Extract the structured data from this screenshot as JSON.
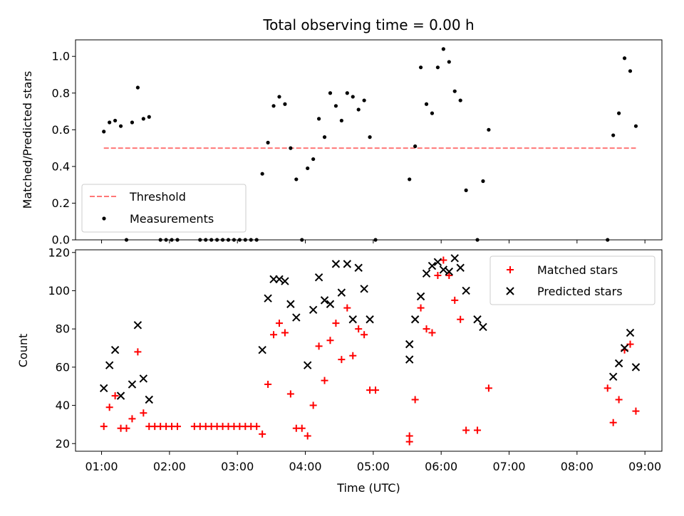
{
  "title": "Total observing time = 0.00 h",
  "colors": {
    "threshold": "#ff7777",
    "measurement": "#000000",
    "matched": "#ff0000",
    "predicted": "#000000"
  },
  "chart_data": [
    {
      "type": "scatter",
      "ylabel": "Matched/Predicted stars",
      "ylim": [
        0,
        1.09
      ],
      "yticks": [
        0.0,
        0.2,
        0.4,
        0.6,
        0.8,
        1.0
      ],
      "ytick_labels": [
        "0.0",
        "0.2",
        "0.4",
        "0.6",
        "0.8",
        "1.0"
      ],
      "xlim": [
        "00:37",
        "09:15"
      ],
      "grid": false,
      "legend": "lower-left",
      "series": [
        {
          "name": "Threshold",
          "style": "dashed-line",
          "color": "#ff7777",
          "x": [
            "01:02",
            "08:52"
          ],
          "y": [
            0.5,
            0.5
          ]
        },
        {
          "name": "Measurements",
          "style": "dot",
          "color": "#000000",
          "points": [
            [
              "01:02",
              0.59
            ],
            [
              "01:07",
              0.64
            ],
            [
              "01:12",
              0.65
            ],
            [
              "01:17",
              0.62
            ],
            [
              "01:22",
              0.0
            ],
            [
              "01:27",
              0.64
            ],
            [
              "01:32",
              0.83
            ],
            [
              "01:37",
              0.66
            ],
            [
              "01:42",
              0.67
            ],
            [
              "01:52",
              0.0
            ],
            [
              "01:57",
              0.0
            ],
            [
              "02:02",
              0.0
            ],
            [
              "02:07",
              0.0
            ],
            [
              "02:27",
              0.0
            ],
            [
              "02:32",
              0.0
            ],
            [
              "02:37",
              0.0
            ],
            [
              "02:42",
              0.0
            ],
            [
              "02:47",
              0.0
            ],
            [
              "02:52",
              0.0
            ],
            [
              "02:57",
              0.0
            ],
            [
              "03:02",
              0.0
            ],
            [
              "03:07",
              0.0
            ],
            [
              "03:12",
              0.0
            ],
            [
              "03:17",
              0.0
            ],
            [
              "03:22",
              0.36
            ],
            [
              "03:27",
              0.53
            ],
            [
              "03:32",
              0.73
            ],
            [
              "03:37",
              0.78
            ],
            [
              "03:42",
              0.74
            ],
            [
              "03:47",
              0.5
            ],
            [
              "03:52",
              0.33
            ],
            [
              "03:57",
              0.0
            ],
            [
              "04:02",
              0.39
            ],
            [
              "04:07",
              0.44
            ],
            [
              "04:12",
              0.66
            ],
            [
              "04:17",
              0.56
            ],
            [
              "04:22",
              0.8
            ],
            [
              "04:27",
              0.73
            ],
            [
              "04:32",
              0.65
            ],
            [
              "04:37",
              0.8
            ],
            [
              "04:42",
              0.78
            ],
            [
              "04:47",
              0.71
            ],
            [
              "04:52",
              0.76
            ],
            [
              "04:57",
              0.56
            ],
            [
              "05:02",
              0.0
            ],
            [
              "05:32",
              0.33
            ],
            [
              "05:37",
              0.51
            ],
            [
              "05:42",
              0.94
            ],
            [
              "05:47",
              0.74
            ],
            [
              "05:52",
              0.69
            ],
            [
              "05:57",
              0.94
            ],
            [
              "06:02",
              1.04
            ],
            [
              "06:07",
              0.97
            ],
            [
              "06:12",
              0.81
            ],
            [
              "06:17",
              0.76
            ],
            [
              "06:22",
              0.27
            ],
            [
              "06:32",
              0.0
            ],
            [
              "06:37",
              0.32
            ],
            [
              "06:42",
              0.6
            ],
            [
              "08:27",
              0.0
            ],
            [
              "08:32",
              0.57
            ],
            [
              "08:37",
              0.69
            ],
            [
              "08:42",
              0.99
            ],
            [
              "08:47",
              0.92
            ],
            [
              "08:52",
              0.62
            ]
          ]
        }
      ]
    },
    {
      "type": "scatter",
      "ylabel": "Count",
      "xlabel": "Time (UTC)",
      "ylim": [
        16,
        121.4
      ],
      "yticks": [
        20,
        40,
        60,
        80,
        100,
        120
      ],
      "ytick_labels": [
        "20",
        "40",
        "60",
        "80",
        "100",
        "120"
      ],
      "xticks": [
        "01:00",
        "02:00",
        "03:00",
        "04:00",
        "05:00",
        "06:00",
        "07:00",
        "08:00",
        "09:00"
      ],
      "xtick_labels": [
        "01:00",
        "02:00",
        "03:00",
        "04:00",
        "05:00",
        "06:00",
        "07:00",
        "08:00",
        "09:00"
      ],
      "xlim": [
        "00:37",
        "09:15"
      ],
      "grid": false,
      "legend": "top-right",
      "series": [
        {
          "name": "Matched stars",
          "marker": "+",
          "color": "#ff0000",
          "points": [
            [
              "01:02",
              29
            ],
            [
              "01:07",
              39
            ],
            [
              "01:12",
              45
            ],
            [
              "01:17",
              28
            ],
            [
              "01:22",
              28
            ],
            [
              "01:27",
              33
            ],
            [
              "01:32",
              68
            ],
            [
              "01:37",
              36
            ],
            [
              "01:42",
              29
            ],
            [
              "01:47",
              29
            ],
            [
              "01:52",
              29
            ],
            [
              "01:57",
              29
            ],
            [
              "02:02",
              29
            ],
            [
              "02:07",
              29
            ],
            [
              "02:22",
              29
            ],
            [
              "02:27",
              29
            ],
            [
              "02:32",
              29
            ],
            [
              "02:37",
              29
            ],
            [
              "02:42",
              29
            ],
            [
              "02:47",
              29
            ],
            [
              "02:52",
              29
            ],
            [
              "02:57",
              29
            ],
            [
              "03:02",
              29
            ],
            [
              "03:07",
              29
            ],
            [
              "03:12",
              29
            ],
            [
              "03:17",
              29
            ],
            [
              "03:22",
              25
            ],
            [
              "03:27",
              51
            ],
            [
              "03:32",
              77
            ],
            [
              "03:37",
              83
            ],
            [
              "03:42",
              78
            ],
            [
              "03:47",
              46
            ],
            [
              "03:52",
              28
            ],
            [
              "03:57",
              28
            ],
            [
              "04:02",
              24
            ],
            [
              "04:07",
              40
            ],
            [
              "04:12",
              71
            ],
            [
              "04:17",
              53
            ],
            [
              "04:22",
              74
            ],
            [
              "04:27",
              83
            ],
            [
              "04:32",
              64
            ],
            [
              "04:37",
              91
            ],
            [
              "04:42",
              66
            ],
            [
              "04:47",
              80
            ],
            [
              "04:52",
              77
            ],
            [
              "04:57",
              48
            ],
            [
              "05:02",
              48
            ],
            [
              "05:32",
              21
            ],
            [
              "05:32",
              24
            ],
            [
              "05:37",
              43
            ],
            [
              "05:42",
              91
            ],
            [
              "05:47",
              80
            ],
            [
              "05:52",
              78
            ],
            [
              "05:57",
              108
            ],
            [
              "06:02",
              116
            ],
            [
              "06:07",
              108
            ],
            [
              "06:12",
              95
            ],
            [
              "06:17",
              85
            ],
            [
              "06:22",
              27
            ],
            [
              "06:32",
              27
            ],
            [
              "06:32",
              27
            ],
            [
              "06:42",
              49
            ],
            [
              "08:27",
              49
            ],
            [
              "08:32",
              31
            ],
            [
              "08:37",
              43
            ],
            [
              "08:42",
              69
            ],
            [
              "08:47",
              72
            ],
            [
              "08:52",
              37
            ]
          ]
        },
        {
          "name": "Predicted stars",
          "marker": "x",
          "color": "#000000",
          "points": [
            [
              "01:02",
              49
            ],
            [
              "01:07",
              61
            ],
            [
              "01:12",
              69
            ],
            [
              "01:17",
              45
            ],
            [
              "01:27",
              51
            ],
            [
              "01:32",
              82
            ],
            [
              "01:37",
              54
            ],
            [
              "01:42",
              43
            ],
            [
              "03:22",
              69
            ],
            [
              "03:27",
              96
            ],
            [
              "03:32",
              106
            ],
            [
              "03:37",
              106
            ],
            [
              "03:42",
              105
            ],
            [
              "03:47",
              93
            ],
            [
              "03:52",
              86
            ],
            [
              "04:02",
              61
            ],
            [
              "04:07",
              90
            ],
            [
              "04:12",
              107
            ],
            [
              "04:17",
              95
            ],
            [
              "04:22",
              93
            ],
            [
              "04:27",
              114
            ],
            [
              "04:32",
              99
            ],
            [
              "04:37",
              114
            ],
            [
              "04:42",
              85
            ],
            [
              "04:47",
              112
            ],
            [
              "04:52",
              101
            ],
            [
              "04:57",
              85
            ],
            [
              "05:32",
              64
            ],
            [
              "05:32",
              72
            ],
            [
              "05:37",
              85
            ],
            [
              "05:42",
              97
            ],
            [
              "05:47",
              109
            ],
            [
              "05:52",
              113
            ],
            [
              "05:57",
              115
            ],
            [
              "06:02",
              111
            ],
            [
              "06:07",
              110
            ],
            [
              "06:12",
              117
            ],
            [
              "06:17",
              112
            ],
            [
              "06:22",
              100
            ],
            [
              "06:32",
              85
            ],
            [
              "06:37",
              81
            ],
            [
              "08:32",
              55
            ],
            [
              "08:37",
              62
            ],
            [
              "08:42",
              70
            ],
            [
              "08:47",
              78
            ],
            [
              "08:52",
              60
            ]
          ]
        }
      ]
    }
  ]
}
